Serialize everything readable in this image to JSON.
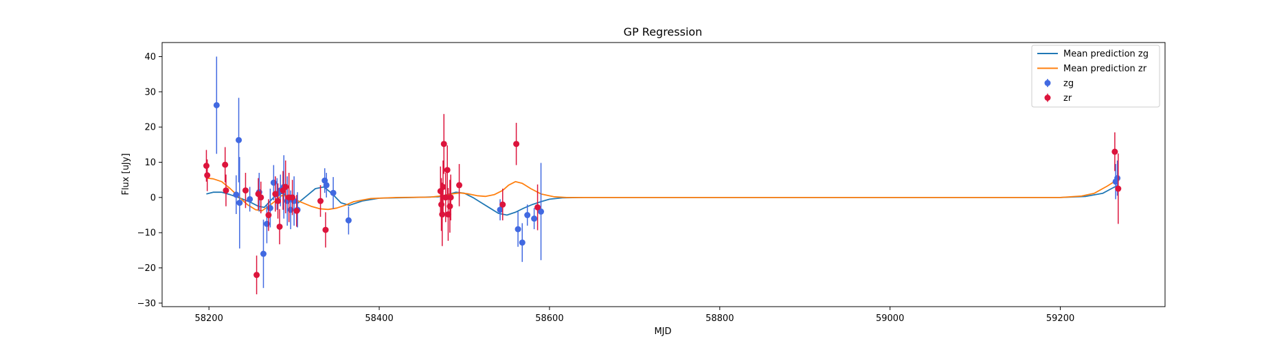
{
  "chart_data": {
    "type": "scatter",
    "title": "GP Regression",
    "xlabel": "MJD",
    "ylabel": "Flux [uJy]",
    "xlim": [
      58145,
      59323
    ],
    "ylim": [
      -31,
      44
    ],
    "xticks": [
      58200,
      58400,
      58600,
      58800,
      59000,
      59200
    ],
    "yticks": [
      -30,
      -20,
      -10,
      0,
      10,
      20,
      30,
      40
    ],
    "grid": false,
    "legend_position": "top-right",
    "colors": {
      "zg": "#4169e1",
      "zr": "#dc143c",
      "mean_zg": "#1f77b4",
      "mean_zr": "#ff7f0e"
    },
    "series": [
      {
        "name": "Mean prediction zg",
        "kind": "line",
        "color": "#1f77b4",
        "x": [
          58197,
          58205,
          58215,
          58225,
          58232,
          58240,
          58250,
          58258,
          58265,
          58272,
          58280,
          58288,
          58296,
          58305,
          58315,
          58325,
          58335,
          58345,
          58355,
          58365,
          58380,
          58400,
          58440,
          58470,
          58480,
          58490,
          58500,
          58510,
          58520,
          58530,
          58540,
          58550,
          58560,
          58570,
          58580,
          58590,
          58600,
          58615,
          58640,
          58700,
          58800,
          58900,
          59000,
          59100,
          59200,
          59230,
          59250,
          59260,
          59268
        ],
        "y": [
          1.0,
          1.5,
          1.5,
          0.8,
          0.2,
          -0.5,
          -1.5,
          -2.5,
          -2.8,
          -1.0,
          1.0,
          1.2,
          -0.8,
          -1.5,
          0.5,
          2.5,
          3.0,
          1.0,
          -1.5,
          -2.2,
          -1.0,
          -0.2,
          0.0,
          0.2,
          0.8,
          1.5,
          1.2,
          0.0,
          -1.5,
          -3.0,
          -4.5,
          -5.0,
          -4.2,
          -3.0,
          -2.0,
          -1.2,
          -0.5,
          -0.1,
          0.0,
          0.0,
          0.0,
          0.0,
          0.0,
          0.0,
          0.0,
          0.3,
          1.2,
          2.5,
          3.5
        ]
      },
      {
        "name": "Mean prediction zr",
        "kind": "line",
        "color": "#ff7f0e",
        "x": [
          58197,
          58205,
          58215,
          58225,
          58235,
          58245,
          58255,
          58262,
          58270,
          58278,
          58285,
          58292,
          58300,
          58310,
          58320,
          58330,
          58340,
          58350,
          58360,
          58370,
          58390,
          58420,
          58460,
          58475,
          58485,
          58495,
          58505,
          58515,
          58525,
          58535,
          58545,
          58552,
          58560,
          58568,
          58578,
          58590,
          58605,
          58620,
          58650,
          58700,
          58800,
          58900,
          59000,
          59100,
          59200,
          59225,
          59240,
          59255,
          59268
        ],
        "y": [
          5.5,
          5.3,
          4.5,
          2.5,
          0.2,
          -2.0,
          -3.5,
          -3.8,
          -2.5,
          -1.0,
          0.5,
          0.5,
          -0.5,
          -1.5,
          -2.5,
          -3.2,
          -3.4,
          -3.0,
          -2.2,
          -1.2,
          -0.3,
          0.0,
          0.1,
          0.5,
          1.0,
          1.3,
          1.0,
          0.5,
          0.3,
          0.8,
          2.0,
          3.5,
          4.5,
          4.0,
          2.5,
          1.0,
          0.2,
          0.0,
          0.0,
          0.0,
          0.0,
          0.0,
          0.0,
          0.0,
          0.0,
          0.4,
          1.2,
          3.2,
          5.2
        ]
      },
      {
        "name": "zg",
        "kind": "errorbar",
        "color": "#4169e1",
        "x": [
          58209,
          58232,
          58235,
          58236,
          58248,
          58259,
          58264,
          58268,
          58272,
          58276,
          58280,
          58284,
          58288,
          58292,
          58296,
          58300,
          58304,
          58336,
          58338,
          58346,
          58364,
          58542,
          58563,
          58568,
          58574,
          58582,
          58590,
          59265,
          59267
        ],
        "y": [
          26.2,
          0.8,
          16.3,
          -1.5,
          -0.5,
          1.5,
          -16.0,
          -7.5,
          -3.0,
          4.2,
          1.0,
          2.0,
          3.0,
          -1.0,
          -3.5,
          -1.0,
          -3.5,
          4.8,
          3.5,
          1.3,
          -6.5,
          -3.5,
          -9.0,
          -12.8,
          -5.0,
          -6.0,
          -4.0,
          4.5,
          5.5
        ],
        "yerr": [
          13.8,
          5.5,
          12.0,
          13.0,
          3.5,
          5.5,
          9.7,
          5.5,
          5.5,
          5.0,
          4.5,
          4.5,
          9.0,
          7.0,
          5.5,
          7.0,
          5.0,
          3.5,
          3.5,
          4.5,
          4.0,
          3.0,
          5.0,
          5.5,
          3.0,
          3.0,
          13.8,
          5.0,
          5.0
        ]
      },
      {
        "name": "zr",
        "kind": "errorbar",
        "color": "#dc143c",
        "x": [
          58197,
          58198,
          58219,
          58220,
          58243,
          58256,
          58258,
          58261,
          58270,
          58278,
          58281,
          58283,
          58287,
          58290,
          58294,
          58298,
          58303,
          58331,
          58337,
          58472,
          58473,
          58474,
          58475,
          58476,
          58478,
          58480,
          58481,
          58483,
          58484,
          58494,
          58545,
          58561,
          58586,
          59264,
          59268
        ],
        "y": [
          9.0,
          6.3,
          9.3,
          2.0,
          2.0,
          -22.0,
          1.0,
          0.0,
          -5.0,
          1.0,
          -1.0,
          -8.3,
          2.0,
          3.0,
          0.0,
          0.0,
          -3.8,
          -1.0,
          -9.2,
          1.8,
          -2.0,
          -4.8,
          3.0,
          15.2,
          0.0,
          7.8,
          -4.8,
          -2.5,
          0.0,
          3.5,
          -2.0,
          15.2,
          -2.8,
          13.0,
          2.5
        ],
        "yerr": [
          4.5,
          4.5,
          5.0,
          4.5,
          5.0,
          5.5,
          4.5,
          4.5,
          4.5,
          5.0,
          5.0,
          5.0,
          5.5,
          7.5,
          7.0,
          5.0,
          4.5,
          4.5,
          5.0,
          7.0,
          7.5,
          9.0,
          7.5,
          8.5,
          7.0,
          7.0,
          7.5,
          7.5,
          6.5,
          6.0,
          4.5,
          6.0,
          6.5,
          5.5,
          10.0
        ]
      }
    ]
  }
}
